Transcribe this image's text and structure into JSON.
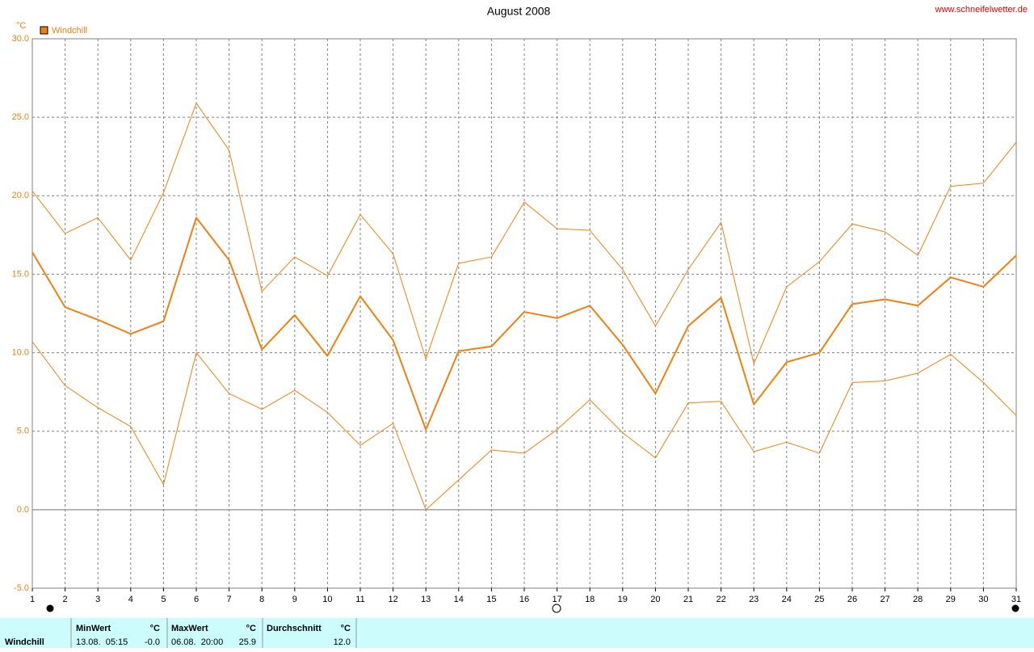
{
  "chart_data": {
    "type": "line",
    "title": "August 2008",
    "source": "www.schneifelwetter.de",
    "y_unit": "°C",
    "x": [
      1,
      2,
      3,
      4,
      5,
      6,
      7,
      8,
      9,
      10,
      11,
      12,
      13,
      14,
      15,
      16,
      17,
      18,
      19,
      20,
      21,
      22,
      23,
      24,
      25,
      26,
      27,
      28,
      29,
      30,
      31
    ],
    "xlim": [
      1,
      31
    ],
    "xticks": [
      1,
      2,
      3,
      4,
      5,
      6,
      7,
      8,
      9,
      10,
      11,
      12,
      13,
      14,
      15,
      16,
      17,
      18,
      19,
      20,
      21,
      22,
      23,
      24,
      25,
      26,
      27,
      28,
      29,
      30,
      31
    ],
    "ylim": [
      -5,
      30
    ],
    "yticks": [
      {
        "value": -5,
        "label": "-5.0"
      },
      {
        "value": 0,
        "label": "0.0"
      },
      {
        "value": 5,
        "label": "5.0"
      },
      {
        "value": 10,
        "label": "10.0"
      },
      {
        "value": 15,
        "label": "15.0"
      },
      {
        "value": 20,
        "label": "20.0"
      },
      {
        "value": 25,
        "label": "25.0"
      },
      {
        "value": 30,
        "label": "30.0"
      }
    ],
    "grid": true,
    "series": [
      {
        "name": "Windchill",
        "color": "#f08010",
        "values": [
          16.4,
          12.9,
          12.1,
          11.2,
          12.0,
          18.6,
          15.9,
          10.2,
          12.4,
          9.8,
          13.6,
          10.8,
          5.1,
          10.1,
          10.4,
          12.6,
          12.2,
          13.0,
          10.5,
          7.4,
          11.7,
          13.5,
          6.7,
          9.4,
          10.0,
          13.1,
          13.4,
          13.0,
          14.8,
          14.2,
          16.2
        ]
      },
      {
        "color": "#f08010",
        "values": [
          20.3,
          17.6,
          18.6,
          15.9,
          20.2,
          25.9,
          22.9,
          13.9,
          16.1,
          14.9,
          18.8,
          16.3,
          9.6,
          15.7,
          16.1,
          19.6,
          17.9,
          17.8,
          15.3,
          11.7,
          15.3,
          18.3,
          9.3,
          14.2,
          15.8,
          18.2,
          17.7,
          16.2,
          20.6,
          20.8,
          23.4
        ]
      },
      {
        "color": "#f08010",
        "values": [
          10.7,
          7.9,
          6.5,
          5.3,
          1.6,
          10.0,
          7.4,
          6.4,
          7.6,
          6.2,
          4.1,
          5.5,
          0.0,
          1.9,
          3.8,
          3.6,
          5.1,
          7.0,
          4.9,
          3.3,
          6.8,
          6.9,
          3.7,
          4.3,
          3.6,
          8.1,
          8.2,
          8.7,
          9.9,
          8.1,
          6.0
        ]
      }
    ]
  },
  "stats": {
    "label": "Windchill",
    "min": {
      "header": "MinWert",
      "unit": "°C",
      "time": "13.08.  05:15",
      "value": "-0.0"
    },
    "max": {
      "header": "MaxWert",
      "unit": "°C",
      "time": "06.08.  20:00",
      "value": "25.9"
    },
    "avg": {
      "header": "Durchschnitt",
      "unit": "°C",
      "value": "12.0"
    }
  }
}
